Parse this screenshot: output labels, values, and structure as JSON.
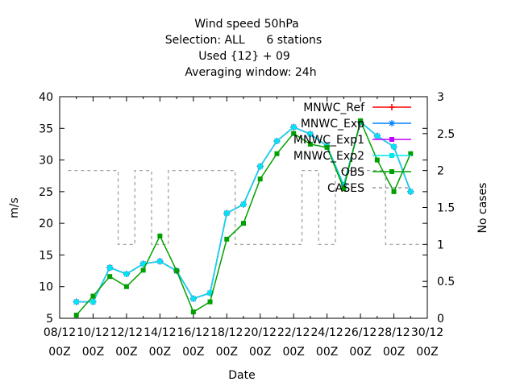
{
  "chart_data": {
    "type": "line",
    "title_lines": [
      "Wind speed 50hPa",
      "Selection: ALL      6 stations",
      "Used {12} + 09",
      "Averaging window: 24h"
    ],
    "xlabel": "Date",
    "ylabel": "m/s",
    "y2label": "No cases",
    "ylim": [
      5,
      40
    ],
    "y2lim": [
      0,
      3
    ],
    "yticks": [
      5,
      10,
      15,
      20,
      25,
      30,
      35,
      40
    ],
    "y2ticks": [
      0,
      0.5,
      1,
      1.5,
      2,
      2.5,
      3
    ],
    "xlim": [
      0,
      22
    ],
    "xticks": [
      {
        "x": 0,
        "line1": "08/12",
        "line2": "00Z"
      },
      {
        "x": 2,
        "line1": "10/12",
        "line2": "00Z"
      },
      {
        "x": 4,
        "line1": "12/12",
        "line2": "00Z"
      },
      {
        "x": 6,
        "line1": "14/12",
        "line2": "00Z"
      },
      {
        "x": 8,
        "line1": "16/12",
        "line2": "00Z"
      },
      {
        "x": 10,
        "line1": "18/12",
        "line2": "00Z"
      },
      {
        "x": 12,
        "line1": "20/12",
        "line2": "00Z"
      },
      {
        "x": 14,
        "line1": "22/12",
        "line2": "00Z"
      },
      {
        "x": 16,
        "line1": "24/12",
        "line2": "00Z"
      },
      {
        "x": 18,
        "line1": "26/12",
        "line2": "00Z"
      },
      {
        "x": 20,
        "line1": "28/12",
        "line2": "00Z"
      },
      {
        "x": 22,
        "line1": "30/12",
        "line2": "00Z"
      }
    ],
    "legend_position": "top-right",
    "series": [
      {
        "name": "MNWC_Ref",
        "color": "#ff0000",
        "axis": "y",
        "style": "solid",
        "marker": "plus",
        "x": [
          1,
          2,
          3,
          4,
          5,
          6,
          7,
          8,
          9,
          10,
          11,
          12,
          13,
          14,
          15,
          16,
          17,
          18,
          19,
          20,
          21
        ],
        "y": [
          7.6,
          7.6,
          13,
          12,
          13.6,
          14,
          12.5,
          8.1,
          9,
          21.6,
          23,
          29,
          33,
          35.2,
          34.1,
          32.2,
          26,
          36,
          33.8,
          32.1,
          25
        ]
      },
      {
        "name": "MNWC_Exp",
        "color": "#0080ff",
        "axis": "y",
        "style": "solid",
        "marker": "star",
        "x": [
          1,
          2,
          3,
          4,
          5,
          6,
          7,
          8,
          9,
          10,
          11,
          12,
          13,
          14,
          15,
          16,
          17,
          18,
          19,
          20,
          21
        ],
        "y": [
          7.6,
          7.6,
          13,
          12,
          13.6,
          14,
          12.5,
          8.1,
          9,
          21.6,
          23,
          29,
          33,
          35.2,
          34.1,
          32.2,
          26,
          36,
          33.8,
          32.1,
          25
        ]
      },
      {
        "name": "MNWC_Exp1",
        "color": "#c000ff",
        "axis": "y",
        "style": "solid",
        "marker": "square",
        "x": [
          1,
          2,
          3,
          4,
          5,
          6,
          7,
          8,
          9,
          10,
          11,
          12,
          13,
          14,
          15,
          16,
          17,
          18,
          19,
          20,
          21
        ],
        "y": [
          7.6,
          7.6,
          13,
          12,
          13.6,
          14,
          12.5,
          8.1,
          9,
          21.6,
          23,
          29,
          33,
          35.2,
          34.1,
          32.2,
          26,
          36,
          33.8,
          32.1,
          25
        ]
      },
      {
        "name": "MNWC_Exp2",
        "color": "#00e5ee",
        "axis": "y",
        "style": "solid",
        "marker": "square",
        "x": [
          1,
          2,
          3,
          4,
          5,
          6,
          7,
          8,
          9,
          10,
          11,
          12,
          13,
          14,
          15,
          16,
          17,
          18,
          19,
          20,
          21
        ],
        "y": [
          7.6,
          7.6,
          13,
          12,
          13.6,
          14,
          12.5,
          8.1,
          9,
          21.6,
          23,
          29,
          33,
          35.2,
          34.1,
          32.2,
          26,
          36,
          33.8,
          32.1,
          25
        ]
      },
      {
        "name": "OBS",
        "color": "#00a000",
        "axis": "y",
        "style": "solid",
        "marker": "square",
        "x": [
          1,
          2,
          3,
          4,
          5,
          6,
          7,
          8,
          9,
          10,
          11,
          12,
          13,
          14,
          15,
          16,
          17,
          18,
          19,
          20,
          21
        ],
        "y": [
          5.5,
          8.5,
          11.6,
          10,
          12.6,
          18,
          12.5,
          6,
          7.6,
          17.5,
          20,
          27,
          31,
          34.2,
          32.5,
          32,
          25.5,
          36.2,
          30,
          25,
          31
        ]
      },
      {
        "name": "CASES",
        "color": "#999999",
        "axis": "y2",
        "style": "dashed",
        "marker": "none",
        "x": [
          1,
          2,
          3,
          4,
          5,
          6,
          7,
          8,
          9,
          10,
          11,
          12,
          13,
          14,
          15,
          16,
          17,
          18,
          19,
          20,
          21
        ],
        "y": [
          2,
          2,
          2,
          1,
          2,
          1,
          2,
          2,
          2,
          2,
          1,
          1,
          1,
          1,
          2,
          1,
          2,
          2,
          2,
          1,
          1
        ]
      }
    ]
  }
}
